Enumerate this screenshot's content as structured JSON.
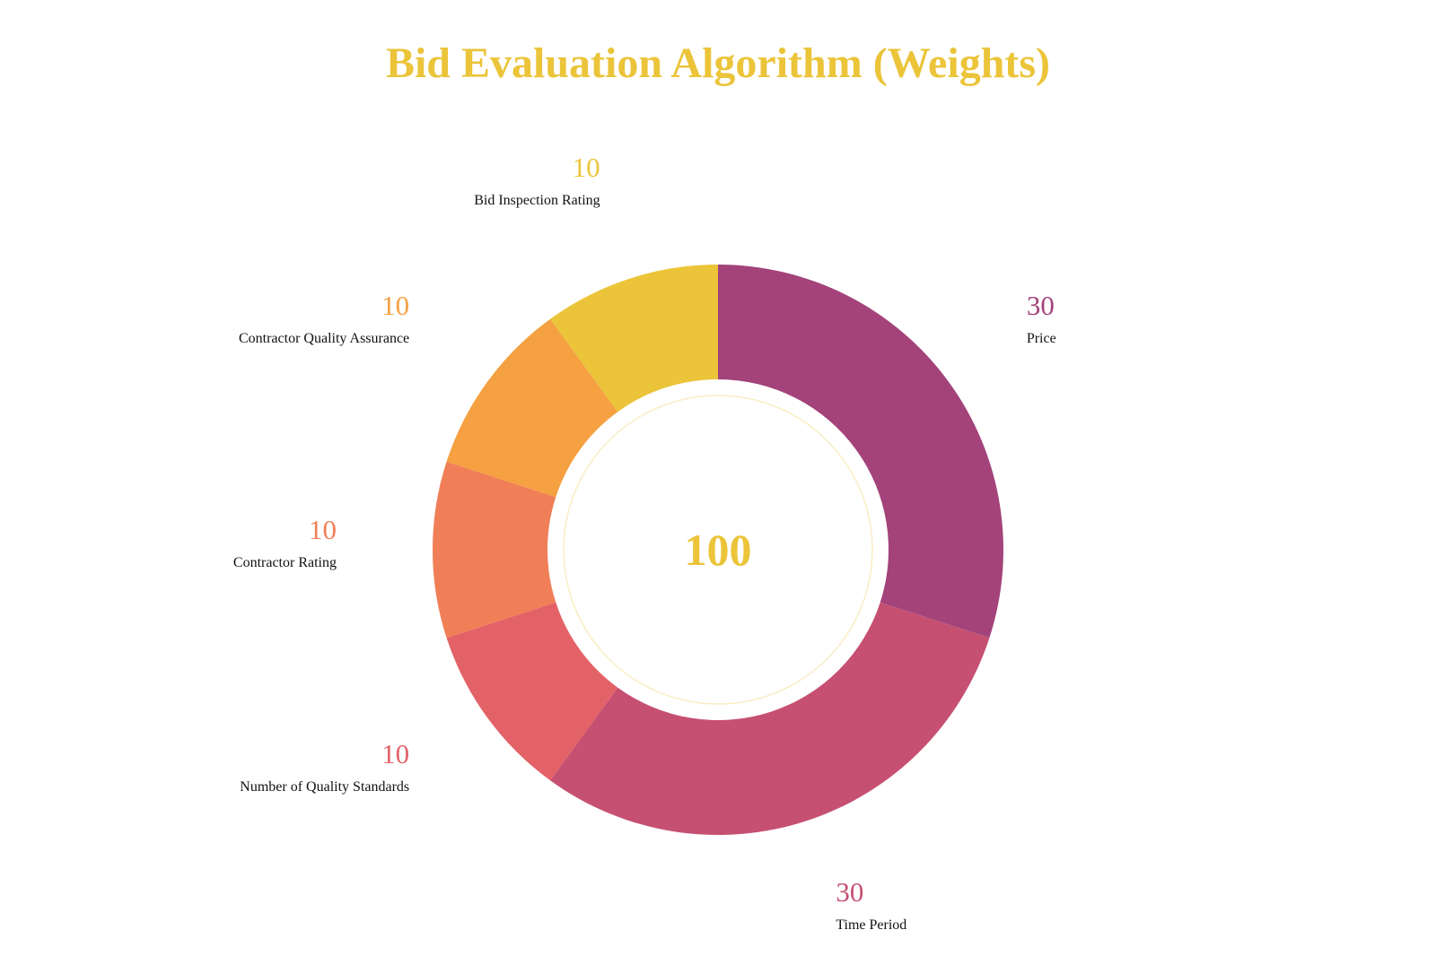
{
  "chart_data": {
    "type": "pie",
    "title": "Bid Evaluation Algorithm (Weights)",
    "title_color": "#EBC439",
    "center_label": "100",
    "center_color": "#EBC439",
    "donut": true,
    "slices": [
      {
        "label": "Price",
        "value": 30,
        "color": "#A3437A"
      },
      {
        "label": "Time Period",
        "value": 30,
        "color": "#C65072"
      },
      {
        "label": "Number of Quality Standards",
        "value": 10,
        "color": "#E26268"
      },
      {
        "label": "Contractor Rating",
        "value": 10,
        "color": "#F07F57"
      },
      {
        "label": "Contractor Quality Assurance",
        "value": 10,
        "color": "#F5A041"
      },
      {
        "label": "Bid Inspection Rating",
        "value": 10,
        "color": "#EBC439"
      }
    ]
  }
}
